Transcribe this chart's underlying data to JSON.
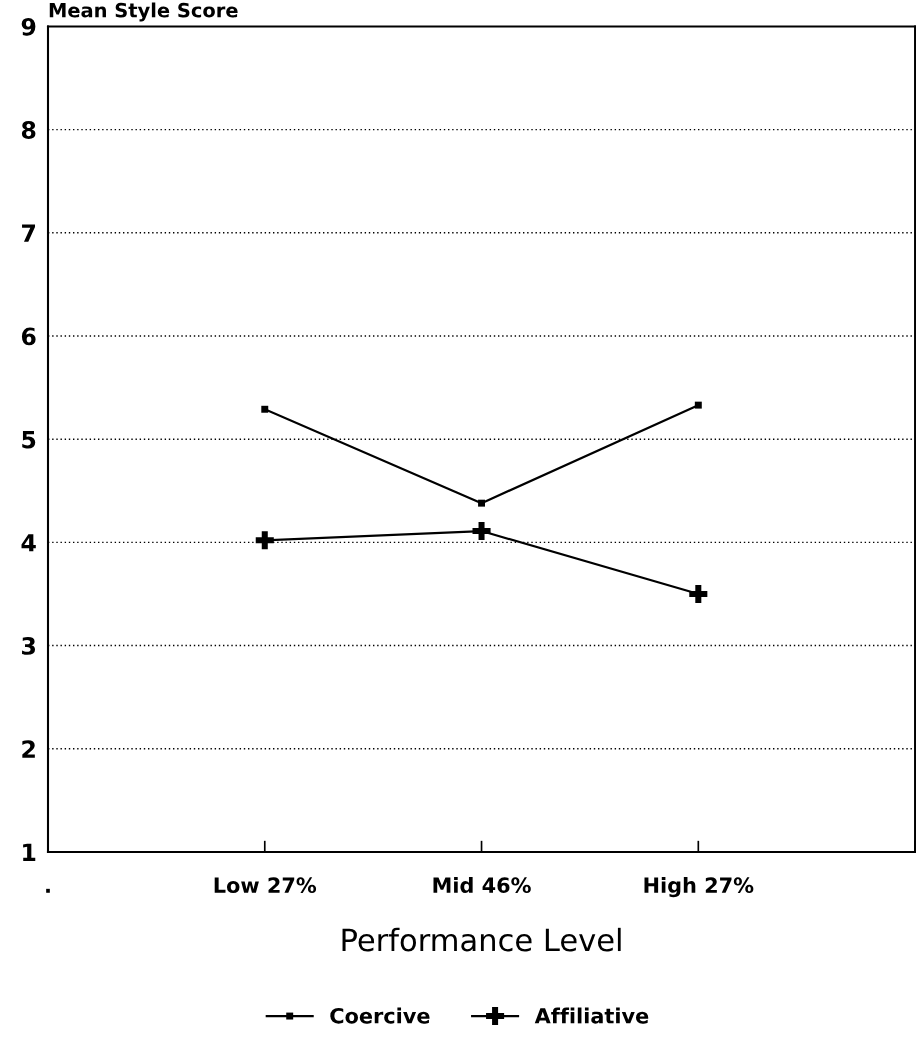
{
  "chart_data": {
    "type": "line",
    "ylabel": "Mean Style Score",
    "xlabel": "Performance Level",
    "categories": [
      ".",
      "Low 27%",
      "Mid 46%",
      "High 27%",
      null
    ],
    "series": [
      {
        "name": "Coercive",
        "color": "#000000",
        "marker": "square",
        "values": [
          null,
          5.29,
          4.38,
          5.33,
          null
        ]
      },
      {
        "name": "Affiliative",
        "color": "#000000",
        "marker": "cross",
        "values": [
          null,
          4.02,
          4.11,
          3.5,
          null
        ]
      }
    ],
    "ylim": [
      1,
      9
    ],
    "yticks": [
      1,
      2,
      3,
      4,
      5,
      6,
      7,
      8,
      9
    ],
    "grid": "y",
    "legend": "bottom",
    "line_style": "solid"
  }
}
